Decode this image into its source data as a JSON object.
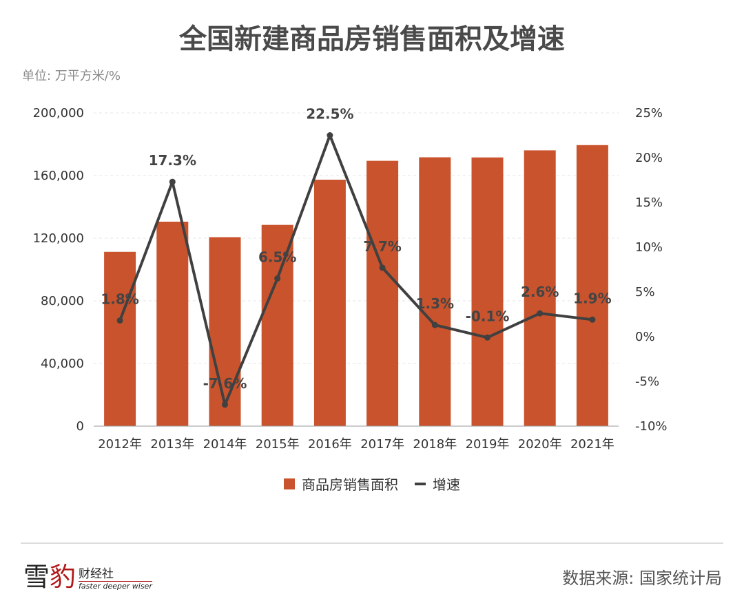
{
  "title": "全国新建商品房销售面积及增速",
  "unit": "单位: 万平方米/%",
  "source": "数据来源: 国家统计局",
  "logo": {
    "char1": "雪",
    "char2": "豹",
    "name": "财经社",
    "slogan": "faster deeper wiser"
  },
  "chart_data": {
    "type": "bar+line",
    "title": "全国新建商品房销售面积及增速",
    "categories": [
      "2012年",
      "2013年",
      "2014年",
      "2015年",
      "2016年",
      "2017年",
      "2018年",
      "2019年",
      "2020年",
      "2021年"
    ],
    "series": [
      {
        "name": "商品房销售面积",
        "type": "bar",
        "axis": "left",
        "color": "#c9532d",
        "values": [
          111304,
          130551,
          120649,
          128495,
          157349,
          169408,
          171654,
          171558,
          176086,
          179433
        ]
      },
      {
        "name": "增速",
        "type": "line",
        "axis": "right",
        "color": "#404040",
        "values": [
          1.8,
          17.3,
          -7.6,
          6.5,
          22.5,
          7.7,
          1.3,
          -0.1,
          2.6,
          1.9
        ],
        "labels": [
          "1.8%",
          "17.3%",
          "-7.6%",
          "6.5%",
          "22.5%",
          "7.7%",
          "1.3%",
          "-0.1%",
          "2.6%",
          "1.9%"
        ]
      }
    ],
    "ylim_left": [
      0,
      200000
    ],
    "yticks_left": [
      "0",
      "40,000",
      "80,000",
      "120,000",
      "160,000",
      "200,000"
    ],
    "ylim_right": [
      -10,
      25
    ],
    "yticks_right": [
      "-10%",
      "-5%",
      "0%",
      "5%",
      "10%",
      "15%",
      "20%",
      "25%"
    ],
    "grid": true,
    "legend": "bottom"
  }
}
